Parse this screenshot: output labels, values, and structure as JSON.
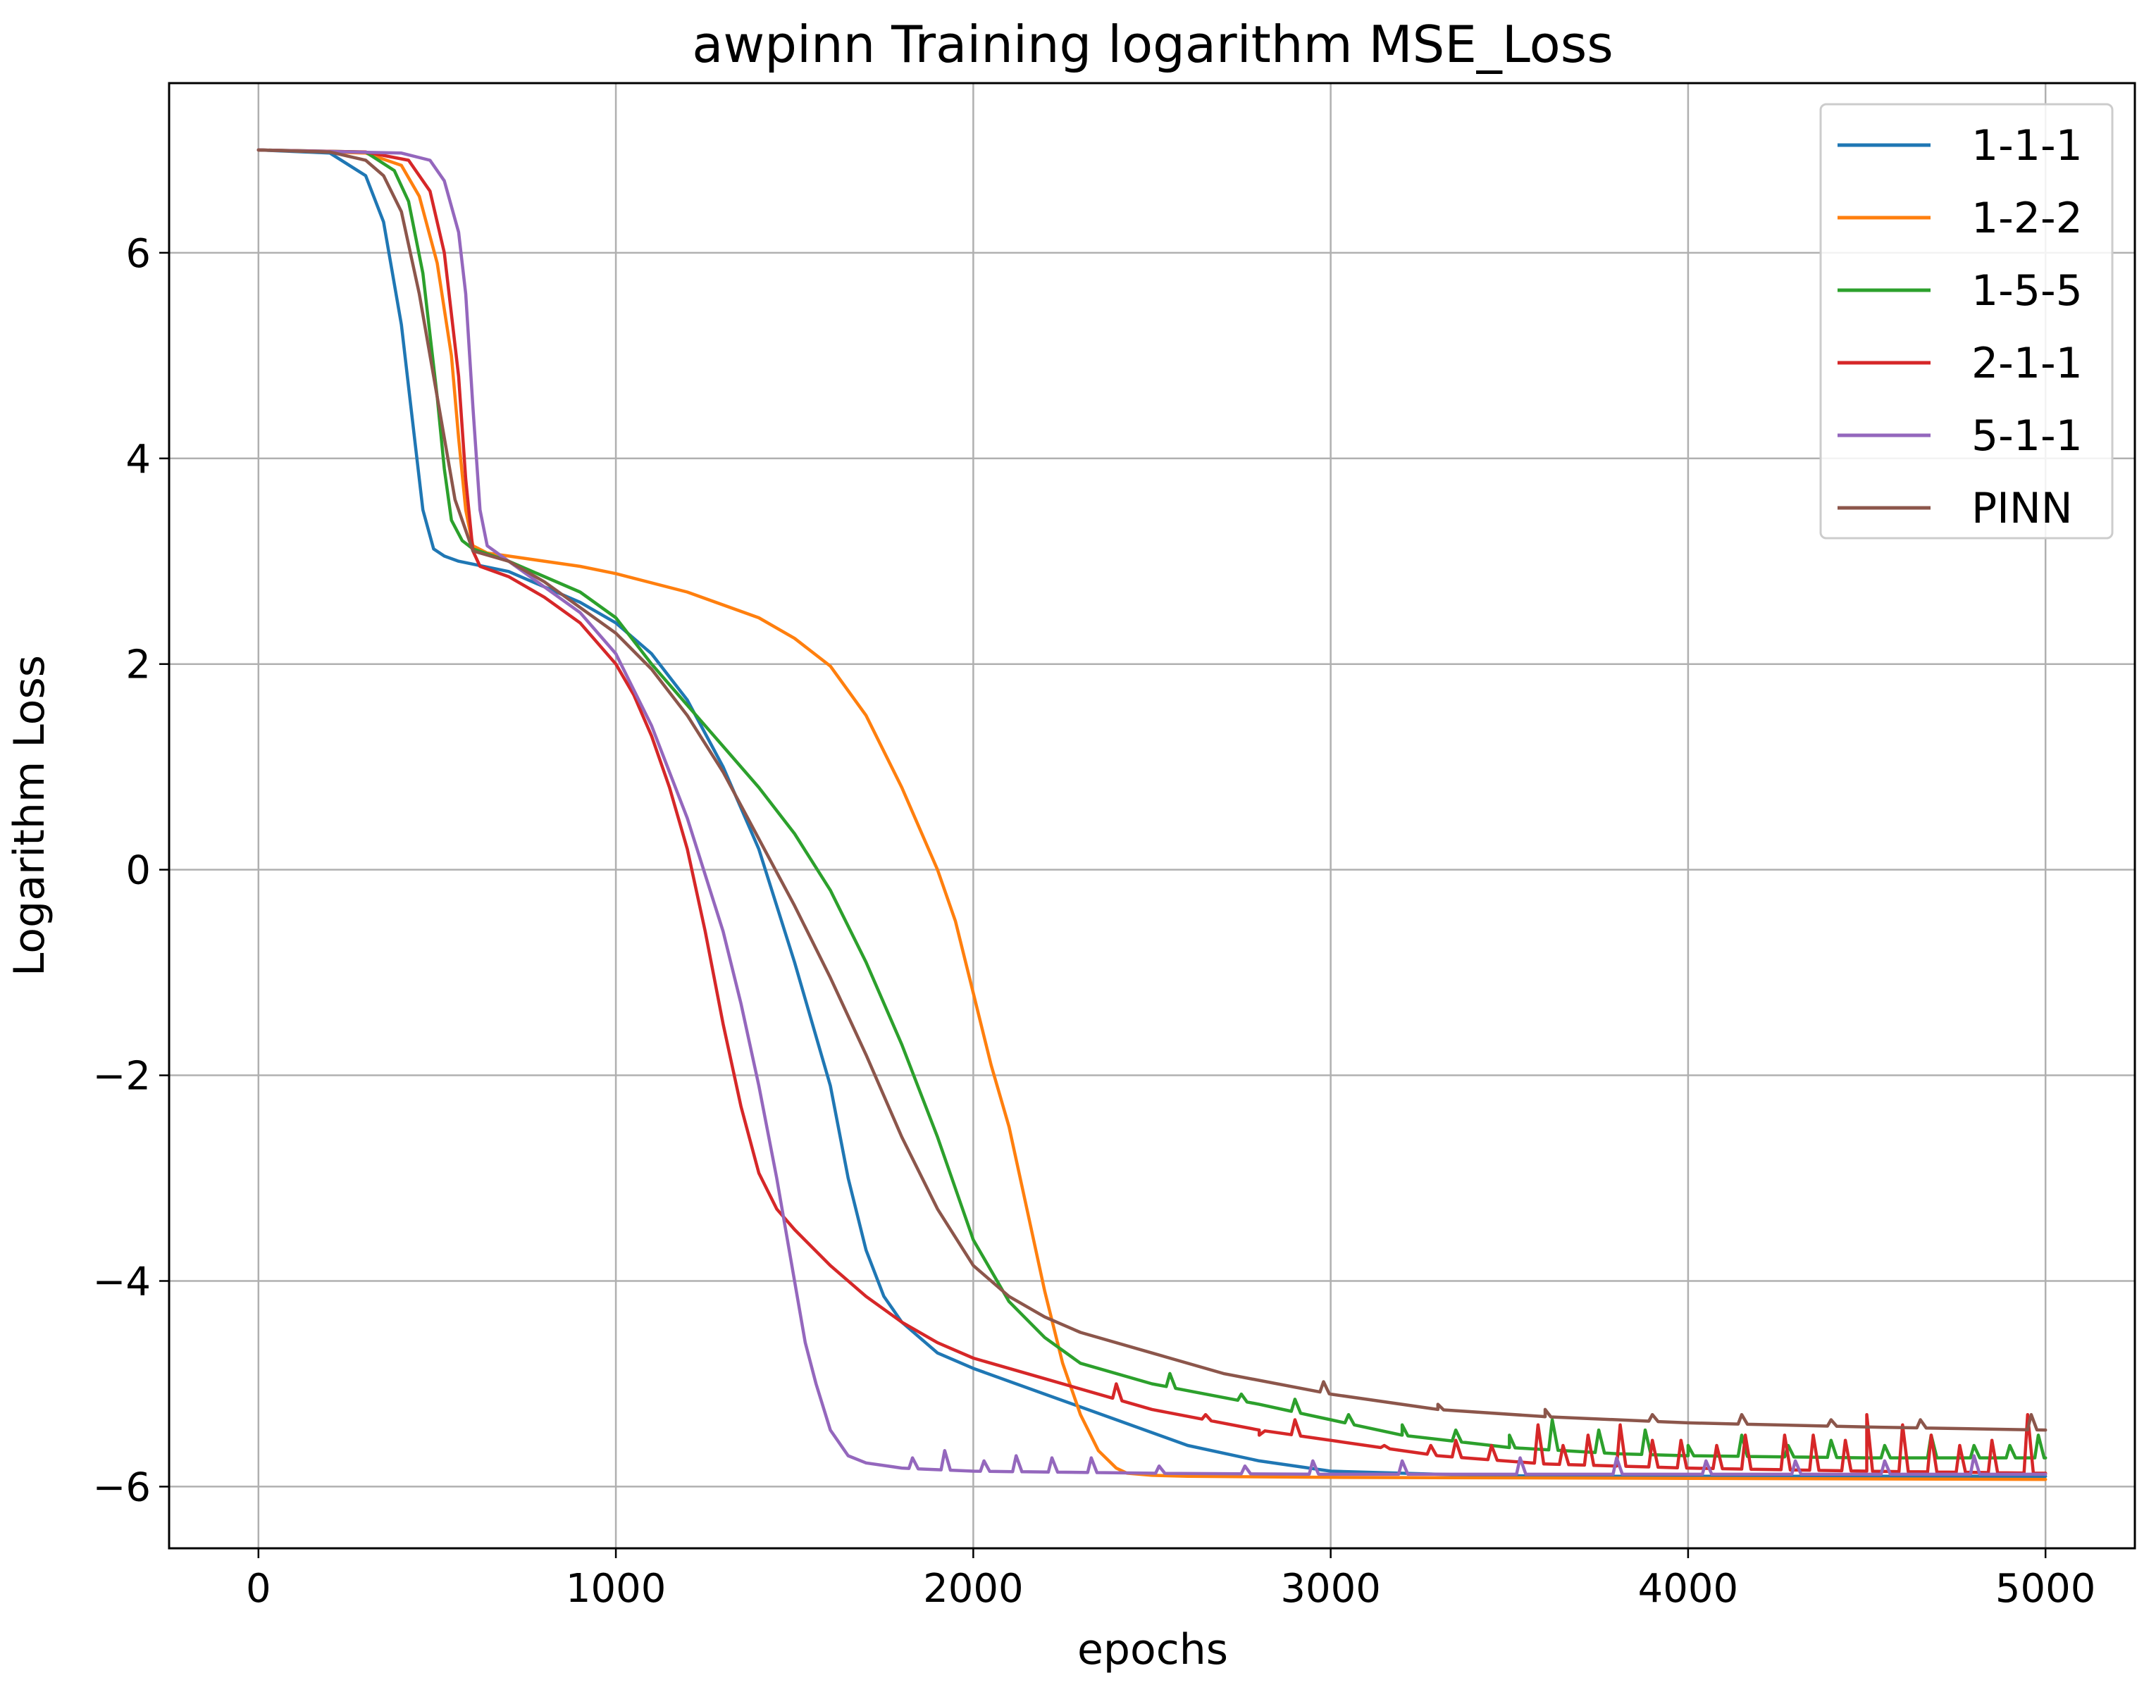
{
  "chart_data": {
    "type": "line",
    "title": "awpinn Training logarithm MSE_Loss",
    "xlabel": "epochs",
    "ylabel": "Logarithm Loss",
    "xlim": [
      -250,
      5250
    ],
    "ylim": [
      -6.6,
      7.65
    ],
    "xticks": [
      0,
      1000,
      2000,
      3000,
      4000,
      5000
    ],
    "yticks": [
      -6,
      -4,
      -2,
      0,
      2,
      4,
      6
    ],
    "xtick_labels": [
      "0",
      "1000",
      "2000",
      "3000",
      "4000",
      "5000"
    ],
    "ytick_labels": [
      "−6",
      "−4",
      "−2",
      "0",
      "2",
      "4",
      "6"
    ],
    "grid": true,
    "legend_position": "top-right",
    "series": [
      {
        "name": "1-1-1",
        "color": "#1f77b4",
        "x": [
          0,
          200,
          300,
          350,
          400,
          430,
          460,
          490,
          520,
          560,
          700,
          900,
          1000,
          1100,
          1200,
          1300,
          1400,
          1500,
          1600,
          1650,
          1700,
          1750,
          1800,
          1900,
          2000,
          2200,
          2400,
          2600,
          2800,
          3000,
          3300,
          3600,
          4000,
          4500,
          5000
        ],
        "y": [
          7.0,
          6.97,
          6.75,
          6.3,
          5.3,
          4.4,
          3.5,
          3.12,
          3.05,
          3.0,
          2.9,
          2.6,
          2.4,
          2.1,
          1.65,
          1.0,
          0.2,
          -0.9,
          -2.1,
          -3.0,
          -3.7,
          -4.15,
          -4.4,
          -4.7,
          -4.85,
          -5.1,
          -5.35,
          -5.6,
          -5.75,
          -5.85,
          -5.88,
          -5.9,
          -5.9,
          -5.9,
          -5.9
        ],
        "spikes": []
      },
      {
        "name": "1-2-2",
        "color": "#ff7f0e",
        "x": [
          0,
          300,
          400,
          450,
          500,
          540,
          560,
          580,
          600,
          640,
          700,
          900,
          1000,
          1200,
          1400,
          1500,
          1600,
          1700,
          1800,
          1900,
          1950,
          2000,
          2050,
          2100,
          2150,
          2200,
          2250,
          2300,
          2350,
          2400,
          2430,
          2500,
          2600,
          3000,
          4000,
          5000
        ],
        "y": [
          7.0,
          6.97,
          6.85,
          6.55,
          5.9,
          5.0,
          4.2,
          3.5,
          3.15,
          3.08,
          3.05,
          2.95,
          2.88,
          2.7,
          2.45,
          2.25,
          1.98,
          1.5,
          0.8,
          0.0,
          -0.5,
          -1.2,
          -1.9,
          -2.5,
          -3.3,
          -4.1,
          -4.8,
          -5.3,
          -5.65,
          -5.82,
          -5.87,
          -5.89,
          -5.9,
          -5.91,
          -5.92,
          -5.93
        ],
        "spikes": []
      },
      {
        "name": "1-5-5",
        "color": "#2ca02c",
        "x": [
          0,
          300,
          380,
          420,
          460,
          500,
          520,
          540,
          570,
          600,
          700,
          900,
          1000,
          1100,
          1200,
          1300,
          1400,
          1500,
          1600,
          1700,
          1800,
          1900,
          2000,
          2100,
          2200,
          2300,
          2500,
          2800,
          3000,
          3200,
          3500,
          3800,
          4000,
          4500,
          5000
        ],
        "y": [
          7.0,
          6.98,
          6.8,
          6.5,
          5.8,
          4.6,
          3.9,
          3.4,
          3.2,
          3.12,
          3.0,
          2.7,
          2.45,
          2.0,
          1.6,
          1.2,
          0.8,
          0.35,
          -0.2,
          -0.9,
          -1.7,
          -2.6,
          -3.6,
          -4.2,
          -4.55,
          -4.8,
          -5.0,
          -5.2,
          -5.35,
          -5.5,
          -5.62,
          -5.68,
          -5.7,
          -5.72,
          -5.72
        ],
        "spikes": [
          [
            2550,
            -4.9
          ],
          [
            2750,
            -5.1
          ],
          [
            2900,
            -5.15
          ],
          [
            3050,
            -5.3
          ],
          [
            3200,
            -5.4
          ],
          [
            3350,
            -5.45
          ],
          [
            3500,
            -5.5
          ],
          [
            3620,
            -5.35
          ],
          [
            3750,
            -5.45
          ],
          [
            3880,
            -5.45
          ],
          [
            4000,
            -5.6
          ],
          [
            4150,
            -5.5
          ],
          [
            4280,
            -5.6
          ],
          [
            4400,
            -5.55
          ],
          [
            4550,
            -5.6
          ],
          [
            4680,
            -5.5
          ],
          [
            4800,
            -5.6
          ],
          [
            4900,
            -5.6
          ],
          [
            4980,
            -5.5
          ]
        ]
      },
      {
        "name": "2-1-1",
        "color": "#d62728",
        "x": [
          0,
          300,
          420,
          480,
          520,
          560,
          580,
          600,
          620,
          700,
          800,
          900,
          1000,
          1050,
          1100,
          1150,
          1200,
          1250,
          1300,
          1350,
          1400,
          1450,
          1500,
          1600,
          1700,
          1800,
          1900,
          2000,
          2200,
          2500,
          2800,
          3000,
          3300,
          3600,
          4000,
          4500,
          5000
        ],
        "y": [
          7.0,
          6.98,
          6.9,
          6.6,
          6.0,
          4.8,
          3.8,
          3.1,
          2.95,
          2.85,
          2.65,
          2.4,
          2.0,
          1.7,
          1.3,
          0.8,
          0.2,
          -0.6,
          -1.5,
          -2.3,
          -2.95,
          -3.3,
          -3.5,
          -3.85,
          -4.15,
          -4.4,
          -4.6,
          -4.75,
          -4.95,
          -5.25,
          -5.45,
          -5.55,
          -5.7,
          -5.78,
          -5.82,
          -5.85,
          -5.87
        ],
        "spikes": [
          [
            2400,
            -5.0
          ],
          [
            2650,
            -5.3
          ],
          [
            2800,
            -5.5
          ],
          [
            2900,
            -5.35
          ],
          [
            3000,
            -5.55
          ],
          [
            3150,
            -5.6
          ],
          [
            3280,
            -5.6
          ],
          [
            3350,
            -5.55
          ],
          [
            3450,
            -5.6
          ],
          [
            3580,
            -5.4
          ],
          [
            3650,
            -5.6
          ],
          [
            3720,
            -5.5
          ],
          [
            3810,
            -5.4
          ],
          [
            3900,
            -5.55
          ],
          [
            3980,
            -5.55
          ],
          [
            4080,
            -5.6
          ],
          [
            4160,
            -5.5
          ],
          [
            4270,
            -5.5
          ],
          [
            4350,
            -5.5
          ],
          [
            4440,
            -5.55
          ],
          [
            4500,
            -5.3
          ],
          [
            4600,
            -5.4
          ],
          [
            4680,
            -5.5
          ],
          [
            4760,
            -5.6
          ],
          [
            4850,
            -5.55
          ],
          [
            4950,
            -5.3
          ]
        ]
      },
      {
        "name": "5-1-1",
        "color": "#9467bd",
        "x": [
          0,
          400,
          480,
          520,
          560,
          580,
          600,
          620,
          640,
          700,
          800,
          900,
          1000,
          1100,
          1200,
          1300,
          1350,
          1400,
          1450,
          1500,
          1530,
          1560,
          1600,
          1650,
          1700,
          1800,
          2000,
          2500,
          3000,
          4000,
          5000
        ],
        "y": [
          7.0,
          6.97,
          6.9,
          6.7,
          6.2,
          5.6,
          4.5,
          3.5,
          3.15,
          3.0,
          2.75,
          2.5,
          2.1,
          1.4,
          0.5,
          -0.6,
          -1.3,
          -2.1,
          -3.0,
          -4.0,
          -4.6,
          -5.0,
          -5.45,
          -5.7,
          -5.77,
          -5.82,
          -5.85,
          -5.87,
          -5.88,
          -5.88,
          -5.88
        ],
        "spikes": [
          [
            1830,
            -5.72
          ],
          [
            1920,
            -5.65
          ],
          [
            2030,
            -5.75
          ],
          [
            2120,
            -5.7
          ],
          [
            2220,
            -5.72
          ],
          [
            2330,
            -5.72
          ],
          [
            2520,
            -5.8
          ],
          [
            2760,
            -5.8
          ],
          [
            2950,
            -5.75
          ],
          [
            3200,
            -5.75
          ],
          [
            3530,
            -5.72
          ],
          [
            3800,
            -5.72
          ],
          [
            4050,
            -5.75
          ],
          [
            4300,
            -5.75
          ],
          [
            4550,
            -5.75
          ],
          [
            4800,
            -5.7
          ]
        ]
      },
      {
        "name": "PINN",
        "color": "#8c564b",
        "x": [
          0,
          200,
          300,
          350,
          400,
          450,
          500,
          550,
          600,
          700,
          800,
          900,
          1000,
          1100,
          1200,
          1300,
          1400,
          1500,
          1600,
          1700,
          1800,
          1900,
          2000,
          2100,
          2200,
          2300,
          2500,
          2700,
          3000,
          3300,
          3600,
          4000,
          4500,
          5000
        ],
        "y": [
          7.0,
          6.98,
          6.9,
          6.75,
          6.4,
          5.6,
          4.6,
          3.6,
          3.1,
          3.0,
          2.8,
          2.55,
          2.3,
          1.95,
          1.5,
          0.95,
          0.3,
          -0.35,
          -1.05,
          -1.8,
          -2.6,
          -3.3,
          -3.85,
          -4.15,
          -4.35,
          -4.5,
          -4.7,
          -4.9,
          -5.1,
          -5.25,
          -5.32,
          -5.38,
          -5.42,
          -5.45
        ],
        "spikes": [
          [
            2980,
            -4.98
          ],
          [
            3300,
            -5.2
          ],
          [
            3600,
            -5.25
          ],
          [
            3900,
            -5.3
          ],
          [
            4150,
            -5.3
          ],
          [
            4400,
            -5.35
          ],
          [
            4650,
            -5.35
          ],
          [
            4960,
            -5.3
          ]
        ]
      }
    ]
  }
}
